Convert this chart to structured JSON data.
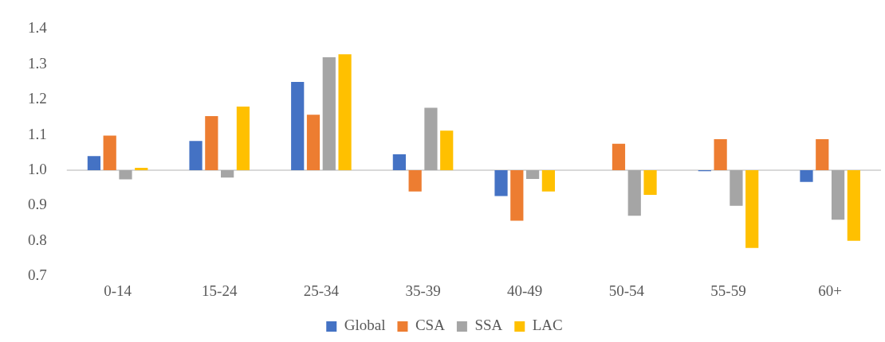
{
  "chart_data": {
    "type": "bar",
    "categories": [
      "0-14",
      "15-24",
      "25-34",
      "35-39",
      "40-49",
      "50-54",
      "55-59",
      "60+"
    ],
    "series": [
      {
        "name": "Global",
        "color": "#4472c4",
        "base": [
          1,
          1,
          1,
          1,
          1,
          null,
          1,
          1
        ],
        "values": [
          0.04,
          0.083,
          0.25,
          0.045,
          -0.073,
          null,
          -0.003,
          -0.033
        ]
      },
      {
        "name": "CSA",
        "color": "#ed7d31",
        "base": [
          1,
          1,
          1,
          1,
          1,
          1,
          1,
          1
        ],
        "values": [
          0.098,
          0.153,
          0.157,
          -0.06,
          -0.143,
          0.075,
          0.088,
          0.088
        ]
      },
      {
        "name": "SSA",
        "color": "#a5a5a5",
        "base": [
          1,
          1,
          1,
          1,
          1,
          1,
          1,
          1
        ],
        "values": [
          -0.026,
          -0.021,
          0.32,
          0.177,
          -0.025,
          -0.129,
          -0.101,
          -0.14
        ]
      },
      {
        "name": "LAC",
        "color": "#ffc000",
        "base": [
          1,
          1,
          1,
          1,
          1,
          1,
          1,
          1
        ],
        "values": [
          0.007,
          0.18,
          0.328,
          0.112,
          -0.06,
          -0.07,
          -0.22,
          -0.2
        ]
      }
    ],
    "ylim": [
      0.7,
      1.4
    ],
    "yticks": [
      {
        "value": 0.7,
        "label": "0.7"
      },
      {
        "value": 0.8,
        "label": "0.8"
      },
      {
        "value": 0.9,
        "label": "0.9"
      },
      {
        "value": 1,
        "label": "1.0"
      },
      {
        "value": 1.1,
        "label": "1.1"
      },
      {
        "value": 1.2,
        "label": "1.2"
      },
      {
        "value": 1.3,
        "label": "1.3"
      },
      {
        "value": 1.4,
        "label": "1.4"
      }
    ],
    "grid": false,
    "ref_lines": [
      {
        "axis": "y",
        "value": 1,
        "color": "#d9d9d9"
      }
    ],
    "legend": "bottom"
  }
}
